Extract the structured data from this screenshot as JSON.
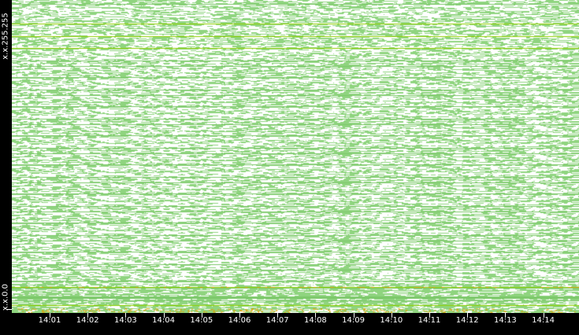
{
  "chart_data": {
    "type": "scatter",
    "title": "",
    "xlabel": "",
    "ylabel": "",
    "x_ticks": [
      "14:01",
      "14:02",
      "14:03",
      "14:04",
      "14:05",
      "14:06",
      "14:07",
      "14:08",
      "14:09",
      "14:10",
      "14:11",
      "14:12",
      "14:13",
      "14:14"
    ],
    "y_ticks": {
      "bottom": "x.x.0.0",
      "top": "x.x.255.255"
    },
    "point_color": "#8fd47f",
    "highlight_color": "#e0a000",
    "background": "#ffffff",
    "grid": false,
    "legend": "none"
  }
}
